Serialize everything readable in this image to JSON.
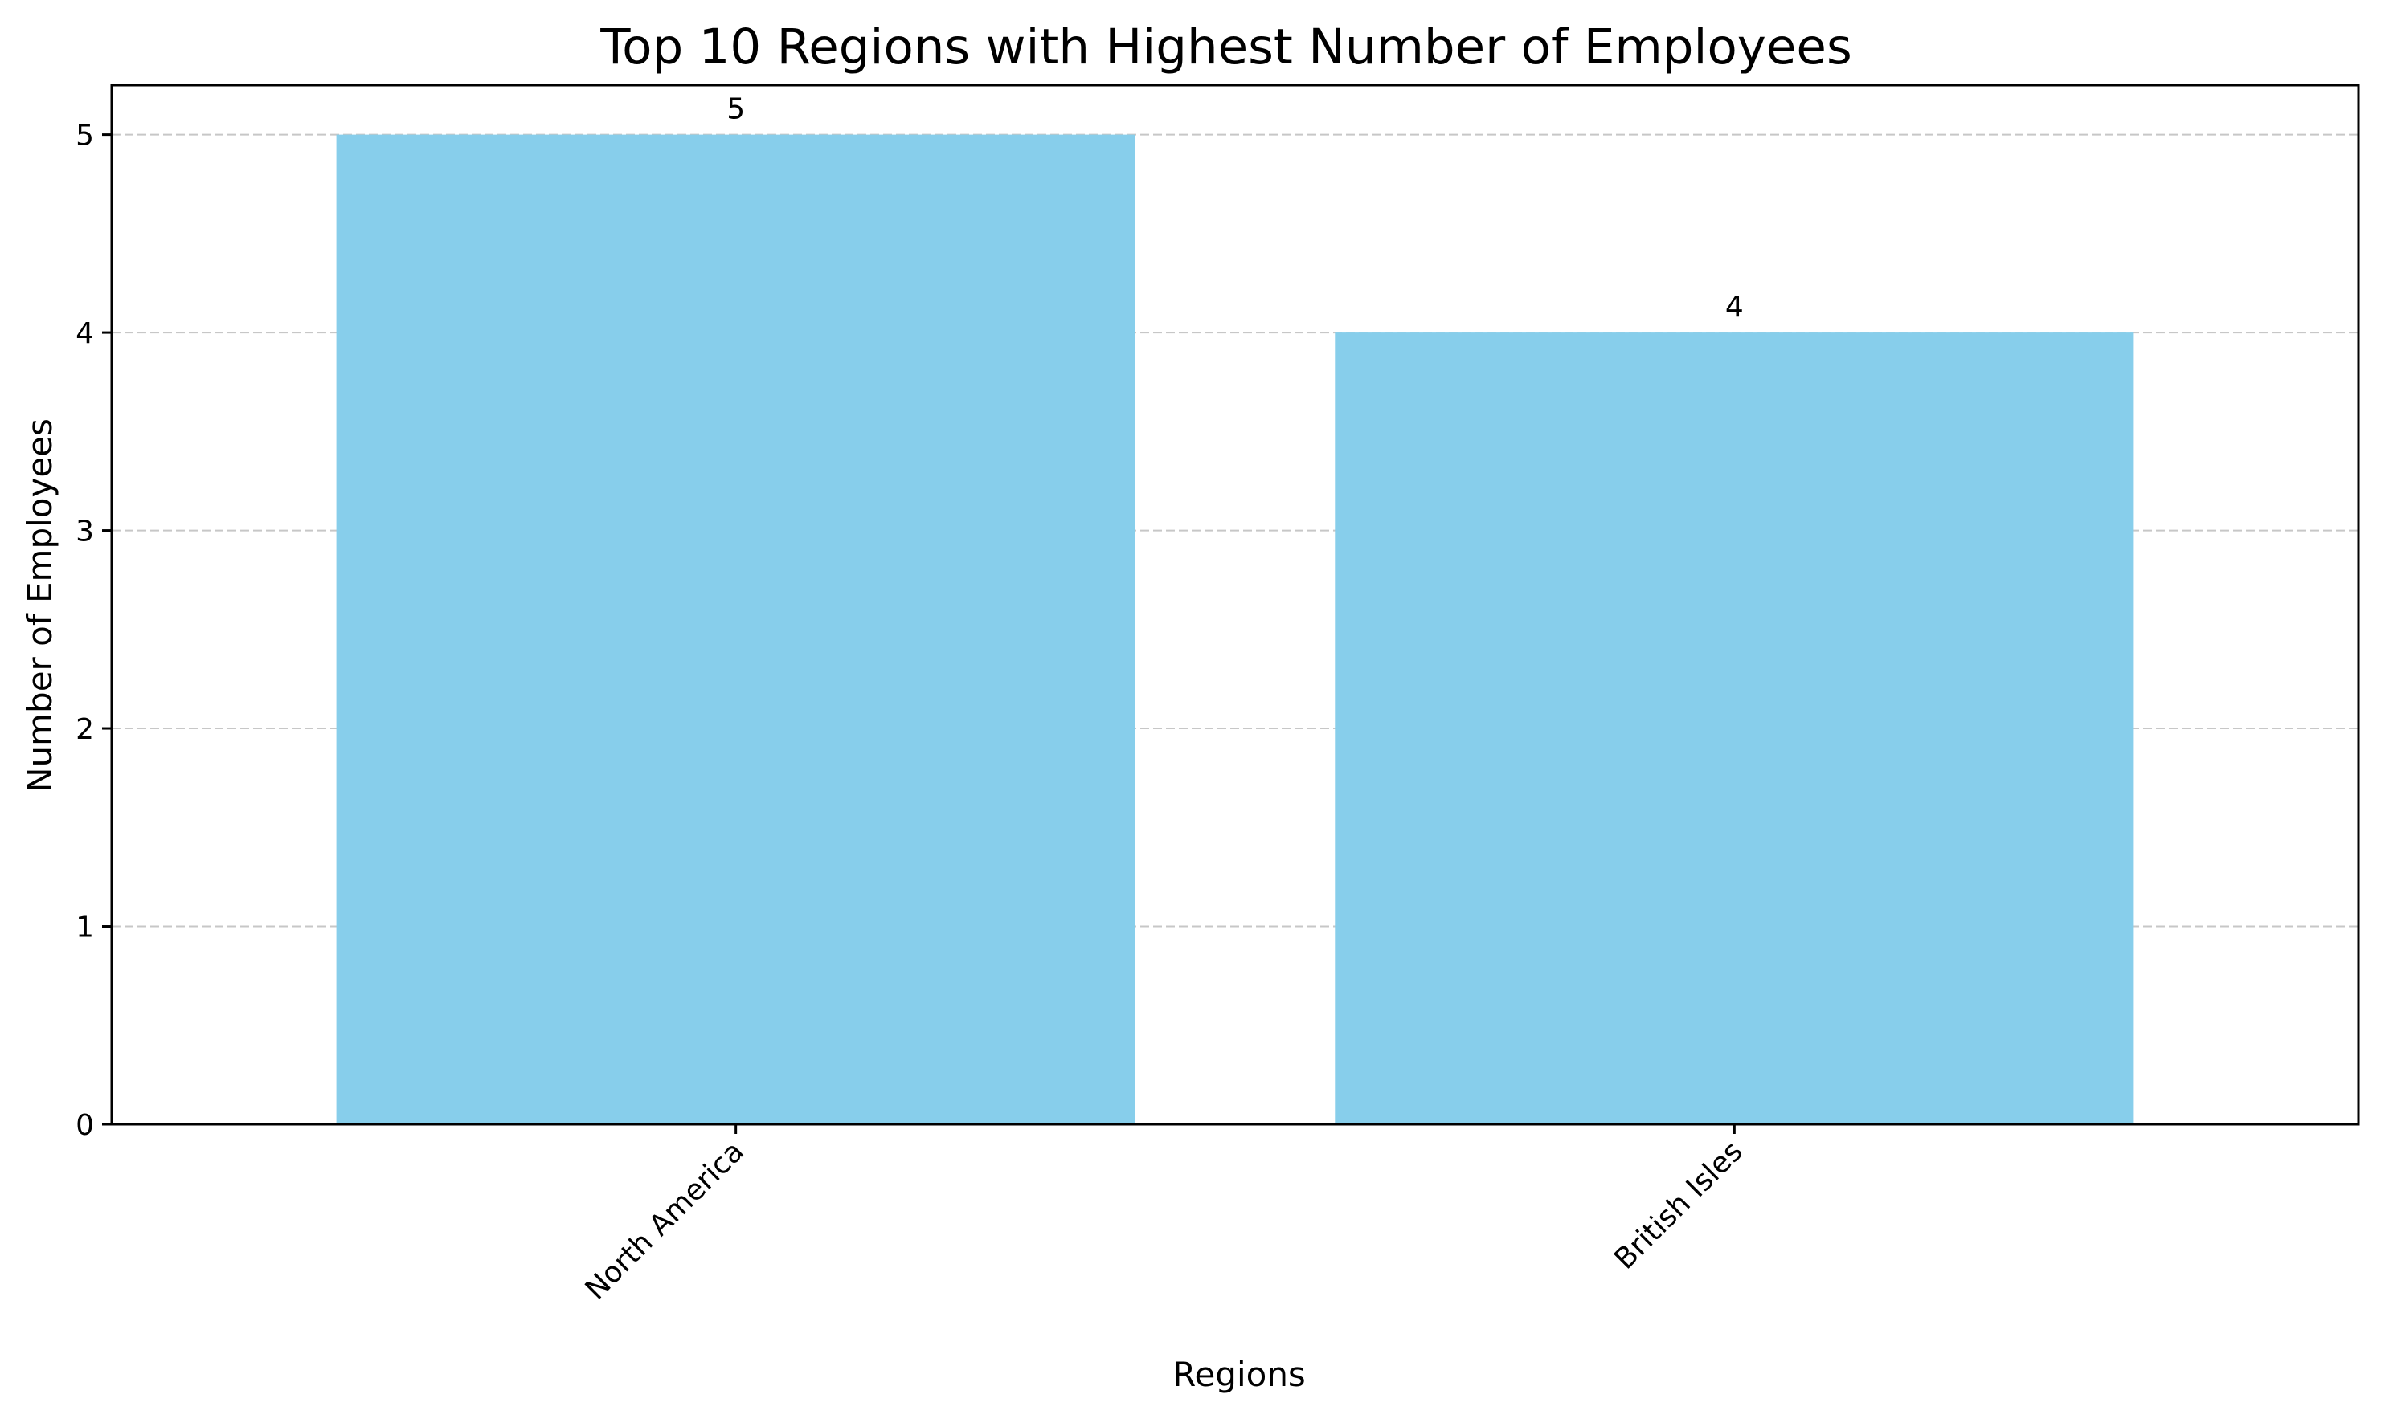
{
  "chart_data": {
    "type": "bar",
    "title": "Top 10 Regions with Highest Number of Employees",
    "xlabel": "Regions",
    "ylabel": "Number of Employees",
    "categories": [
      "North America",
      "British Isles"
    ],
    "values": [
      5,
      4
    ],
    "data_labels": [
      "5",
      "4"
    ],
    "yticks": [
      0,
      1,
      2,
      3,
      4,
      5
    ],
    "ylim": [
      0,
      5.25
    ],
    "grid": "y-dashed",
    "bar_color": "#87CEEB",
    "xtick_rotation": 45
  }
}
